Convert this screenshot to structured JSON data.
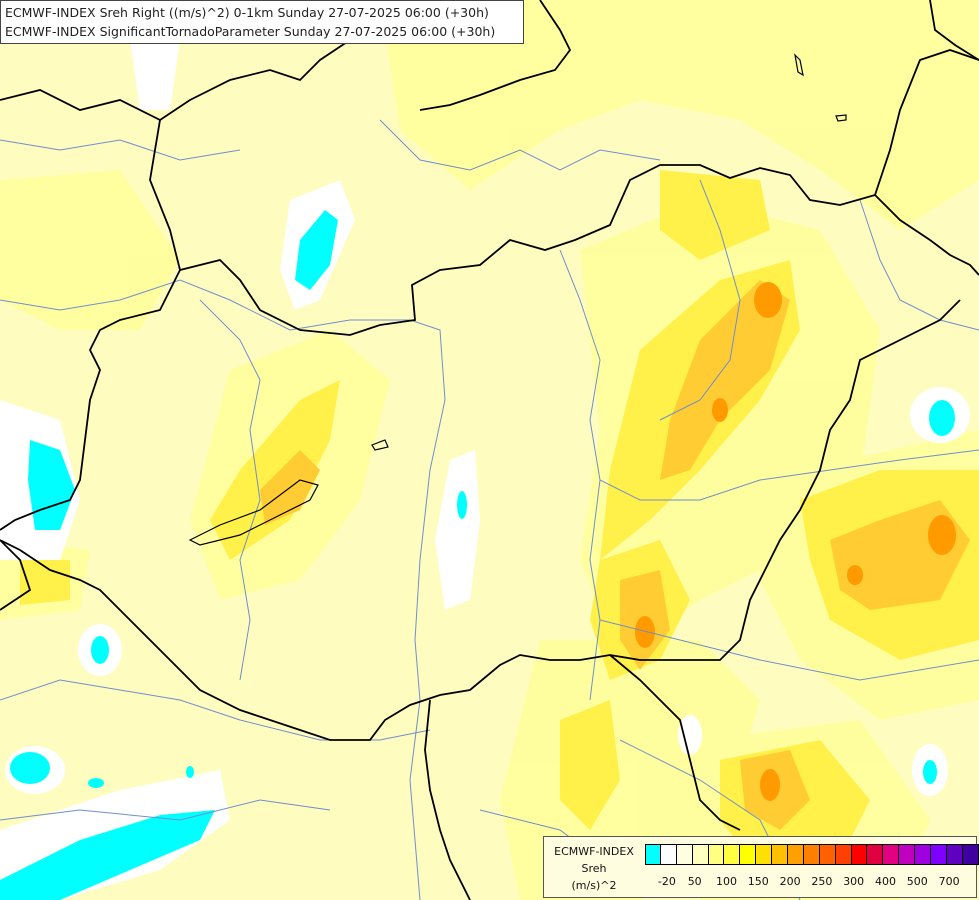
{
  "titles": {
    "line1": "ECMWF-INDEX Sreh Right ((m/s)^2) 0-1km Sunday 27-07-2025 06:00 (+30h)",
    "line2": "ECMWF-INDEX SignificantTornadoParameter Sunday 27-07-2025 06:00 (+30h)"
  },
  "legend": {
    "title1": "ECMWF-INDEX",
    "title2": "Sreh",
    "unit": "(m/s)^2",
    "colors": [
      "#00ffff",
      "#ffffff",
      "#ffffe0",
      "#ffffc0",
      "#ffff80",
      "#ffff40",
      "#ffff00",
      "#ffe000",
      "#ffc000",
      "#ffa000",
      "#ff8000",
      "#ff6000",
      "#ff4000",
      "#ff0000",
      "#e00040",
      "#e00080",
      "#c000c0",
      "#a000e0",
      "#8000ff",
      "#6000c0",
      "#4000a0",
      "#200080",
      "#000080"
    ],
    "tick_labels": [
      "-20",
      "50",
      "100",
      "150",
      "200",
      "250",
      "300",
      "400",
      "500",
      "700"
    ]
  },
  "colors": {
    "water_low": "#00ffff",
    "neutral": "#ffffff",
    "pale": "#ffffc8",
    "light": "#ffff9a",
    "yellow": "#ffee4d",
    "gold": "#ffcc33",
    "orange": "#ff9a00",
    "border": "#000000",
    "river": "#6e8fcc"
  }
}
